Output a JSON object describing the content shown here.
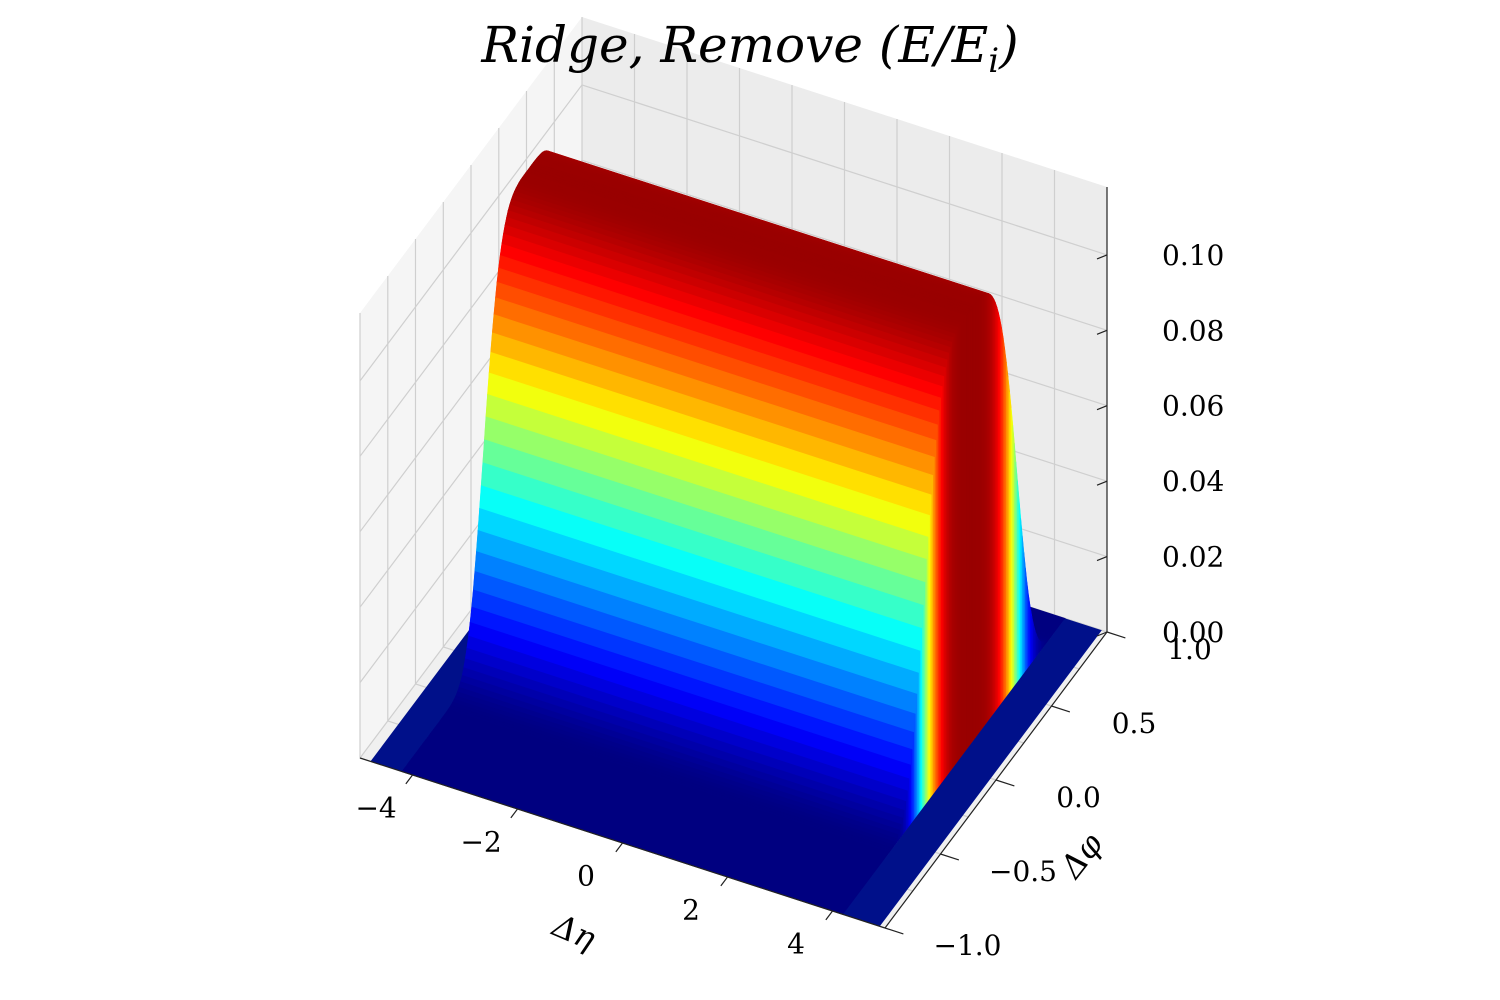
{
  "chart_data": {
    "type": "surface3d",
    "title": "Ridge, Remove    (E/E_i)",
    "title_display": "Ridge, Remove   (E/E",
    "title_subscript": "i",
    "title_close": ")",
    "xlabel": "Δη",
    "ylabel": "Δφ",
    "zlabel": "",
    "x_ticks": [
      "−4",
      "−2",
      "0",
      "2",
      "4"
    ],
    "x_tick_values": [
      -4,
      -2,
      0,
      2,
      4
    ],
    "y_ticks": [
      "−1.0",
      "−0.5",
      "0.0",
      "0.5",
      "1.0"
    ],
    "y_tick_values": [
      -1.0,
      -0.5,
      0.0,
      0.5,
      1.0
    ],
    "z_ticks": [
      "0.00",
      "0.02",
      "0.04",
      "0.06",
      "0.08",
      "0.10"
    ],
    "z_tick_values": [
      0.0,
      0.02,
      0.04,
      0.06,
      0.08,
      0.1
    ],
    "xlim": [
      -5,
      5
    ],
    "ylim": [
      -1.0,
      1.0
    ],
    "zlim": [
      0.0,
      0.118
    ],
    "colormap": "jet",
    "grid": true,
    "surface": {
      "description": "ridge uniform along Δη, nonzero for |Δη| < 4.2, peak 0.115 at Δφ ≈ 0.15, shape ~ peak·exp(-((Δφ-0.15)/0.45)^4)",
      "eta_support": [
        -4.2,
        4.2
      ],
      "peak_value": 0.115,
      "phi_center": 0.15,
      "phi_width": 0.45,
      "edge_wall_height": 0.04,
      "profile_phi": [
        -1.0,
        -0.8,
        -0.6,
        -0.4,
        -0.2,
        0.0,
        0.15,
        0.3,
        0.5,
        0.7,
        0.9,
        1.0
      ],
      "profile_value": [
        0.0,
        0.0,
        0.002,
        0.045,
        0.098,
        0.113,
        0.115,
        0.113,
        0.098,
        0.045,
        0.002,
        0.0
      ]
    }
  }
}
